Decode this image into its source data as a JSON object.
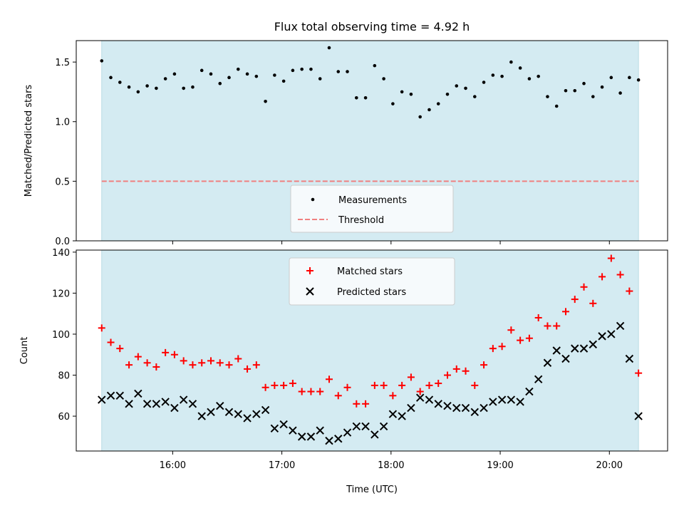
{
  "chart_data": [
    {
      "type": "scatter",
      "title": "Flux total observing time = 4.92 h",
      "ylabel": "Matched/Predicted stars",
      "xlim": [
        "15:07",
        "20:32"
      ],
      "ylim": [
        0,
        1.68
      ],
      "yticks": [
        "0.0",
        "0.5",
        "1.0",
        "1.5"
      ],
      "shaded_span": [
        "15:21",
        "20:16"
      ],
      "shade_color": "#d4ebf2",
      "threshold": {
        "name": "Threshold",
        "value": 0.5,
        "color": "#f08080",
        "style": "dashed"
      },
      "legend_position": "lower center",
      "series": [
        {
          "name": "Measurements",
          "marker": "dot",
          "color": "#000000",
          "x": [
            "15:21",
            "15:26",
            "15:31",
            "15:36",
            "15:41",
            "15:46",
            "15:51",
            "15:56",
            "16:01",
            "16:06",
            "16:11",
            "16:16",
            "16:21",
            "16:26",
            "16:31",
            "16:36",
            "16:41",
            "16:46",
            "16:51",
            "16:56",
            "17:01",
            "17:06",
            "17:11",
            "17:16",
            "17:21",
            "17:26",
            "17:31",
            "17:36",
            "17:41",
            "17:46",
            "17:51",
            "17:56",
            "18:01",
            "18:06",
            "18:11",
            "18:16",
            "18:21",
            "18:26",
            "18:31",
            "18:36",
            "18:41",
            "18:46",
            "18:51",
            "18:56",
            "19:01",
            "19:06",
            "19:11",
            "19:16",
            "19:21",
            "19:26",
            "19:31",
            "19:36",
            "19:41",
            "19:46",
            "19:51",
            "19:56",
            "20:01",
            "20:06",
            "20:11",
            "20:16"
          ],
          "y": [
            1.51,
            1.37,
            1.33,
            1.29,
            1.25,
            1.3,
            1.28,
            1.36,
            1.4,
            1.28,
            1.29,
            1.43,
            1.4,
            1.32,
            1.37,
            1.44,
            1.4,
            1.38,
            1.17,
            1.39,
            1.34,
            1.43,
            1.44,
            1.44,
            1.36,
            1.62,
            1.42,
            1.42,
            1.2,
            1.2,
            1.47,
            1.36,
            1.15,
            1.25,
            1.23,
            1.04,
            1.1,
            1.15,
            1.23,
            1.3,
            1.28,
            1.21,
            1.33,
            1.39,
            1.38,
            1.5,
            1.45,
            1.36,
            1.38,
            1.21,
            1.13,
            1.26,
            1.26,
            1.32,
            1.21,
            1.29,
            1.37,
            1.24,
            1.37,
            1.35
          ]
        }
      ]
    },
    {
      "type": "scatter",
      "xlabel": "Time (UTC)",
      "ylabel": "Count",
      "xlim": [
        "15:07",
        "20:32"
      ],
      "ylim": [
        43,
        141
      ],
      "yticks": [
        "60",
        "80",
        "100",
        "120",
        "140"
      ],
      "xticks": [
        "16:00",
        "17:00",
        "18:00",
        "19:00",
        "20:00"
      ],
      "shaded_span": [
        "15:21",
        "20:16"
      ],
      "shade_color": "#d4ebf2",
      "legend_position": "upper center",
      "series": [
        {
          "name": "Matched stars",
          "marker": "plus",
          "color": "#ff0000",
          "x": [
            "15:21",
            "15:26",
            "15:31",
            "15:36",
            "15:41",
            "15:46",
            "15:51",
            "15:56",
            "16:01",
            "16:06",
            "16:11",
            "16:16",
            "16:21",
            "16:26",
            "16:31",
            "16:36",
            "16:41",
            "16:46",
            "16:51",
            "16:56",
            "17:01",
            "17:06",
            "17:11",
            "17:16",
            "17:21",
            "17:26",
            "17:31",
            "17:36",
            "17:41",
            "17:46",
            "17:51",
            "17:56",
            "18:01",
            "18:06",
            "18:11",
            "18:16",
            "18:21",
            "18:26",
            "18:31",
            "18:36",
            "18:41",
            "18:46",
            "18:51",
            "18:56",
            "19:01",
            "19:06",
            "19:11",
            "19:16",
            "19:21",
            "19:26",
            "19:31",
            "19:36",
            "19:41",
            "19:46",
            "19:51",
            "19:56",
            "20:01",
            "20:06",
            "20:11",
            "20:16"
          ],
          "y": [
            103,
            96,
            93,
            85,
            89,
            86,
            84,
            91,
            90,
            87,
            85,
            86,
            87,
            86,
            85,
            88,
            83,
            85,
            74,
            75,
            75,
            76,
            72,
            72,
            72,
            78,
            70,
            74,
            66,
            66,
            75,
            75,
            70,
            75,
            79,
            72,
            75,
            76,
            80,
            83,
            82,
            75,
            85,
            93,
            94,
            102,
            97,
            98,
            108,
            104,
            104,
            111,
            117,
            123,
            115,
            128,
            137,
            129,
            121,
            81
          ]
        },
        {
          "name": "Predicted stars",
          "marker": "x",
          "color": "#000000",
          "x": [
            "15:21",
            "15:26",
            "15:31",
            "15:36",
            "15:41",
            "15:46",
            "15:51",
            "15:56",
            "16:01",
            "16:06",
            "16:11",
            "16:16",
            "16:21",
            "16:26",
            "16:31",
            "16:36",
            "16:41",
            "16:46",
            "16:51",
            "16:56",
            "17:01",
            "17:06",
            "17:11",
            "17:16",
            "17:21",
            "17:26",
            "17:31",
            "17:36",
            "17:41",
            "17:46",
            "17:51",
            "17:56",
            "18:01",
            "18:06",
            "18:11",
            "18:16",
            "18:21",
            "18:26",
            "18:31",
            "18:36",
            "18:41",
            "18:46",
            "18:51",
            "18:56",
            "19:01",
            "19:06",
            "19:11",
            "19:16",
            "19:21",
            "19:26",
            "19:31",
            "19:36",
            "19:41",
            "19:46",
            "19:51",
            "19:56",
            "20:01",
            "20:06",
            "20:11",
            "20:16"
          ],
          "y": [
            68,
            70,
            70,
            66,
            71,
            66,
            66,
            67,
            64,
            68,
            66,
            60,
            62,
            65,
            62,
            61,
            59,
            61,
            63,
            54,
            56,
            53,
            50,
            50,
            53,
            48,
            49,
            52,
            55,
            55,
            51,
            55,
            61,
            60,
            64,
            69,
            68,
            66,
            65,
            64,
            64,
            62,
            64,
            67,
            68,
            68,
            67,
            72,
            78,
            86,
            92,
            88,
            93,
            93,
            95,
            99,
            100,
            104,
            88,
            60
          ]
        }
      ]
    }
  ]
}
